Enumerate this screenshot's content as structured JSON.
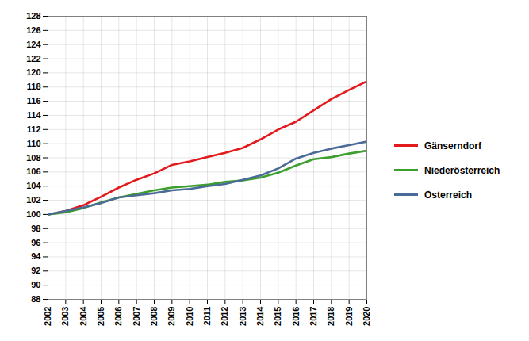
{
  "chart_data": {
    "type": "line",
    "x": [
      2002,
      2003,
      2004,
      2005,
      2006,
      2007,
      2008,
      2009,
      2010,
      2011,
      2012,
      2013,
      2014,
      2015,
      2016,
      2017,
      2018,
      2019,
      2020
    ],
    "series": [
      {
        "name": "Gänserndorf",
        "color": "#e31a1c",
        "values": [
          100,
          100.5,
          101.3,
          102.5,
          103.8,
          104.9,
          105.8,
          107.0,
          107.5,
          108.1,
          108.7,
          109.4,
          110.6,
          112.0,
          113.1,
          114.7,
          116.3,
          117.6,
          118.8
        ]
      },
      {
        "name": "Niederösterreich",
        "color": "#3c9e2c",
        "values": [
          100,
          100.3,
          100.9,
          101.7,
          102.4,
          102.9,
          103.4,
          103.8,
          104.0,
          104.2,
          104.6,
          104.8,
          105.2,
          105.9,
          106.9,
          107.8,
          108.1,
          108.6,
          109.0
        ]
      },
      {
        "name": "Österreich",
        "color": "#4a6b96",
        "values": [
          100,
          100.5,
          101.0,
          101.6,
          102.4,
          102.7,
          103.0,
          103.4,
          103.6,
          104.0,
          104.3,
          104.9,
          105.5,
          106.5,
          107.9,
          108.7,
          109.3,
          109.8,
          110.3
        ]
      }
    ],
    "xlim": [
      2002,
      2020
    ],
    "xticks": [
      2002,
      2003,
      2004,
      2005,
      2006,
      2007,
      2008,
      2009,
      2010,
      2011,
      2012,
      2013,
      2014,
      2015,
      2016,
      2017,
      2018,
      2019,
      2020
    ],
    "ylim": [
      88,
      128
    ],
    "yticks": [
      88,
      90,
      92,
      94,
      96,
      98,
      100,
      102,
      104,
      106,
      108,
      110,
      112,
      114,
      116,
      118,
      120,
      122,
      124,
      126,
      128
    ],
    "grid": true,
    "legend": "right"
  }
}
